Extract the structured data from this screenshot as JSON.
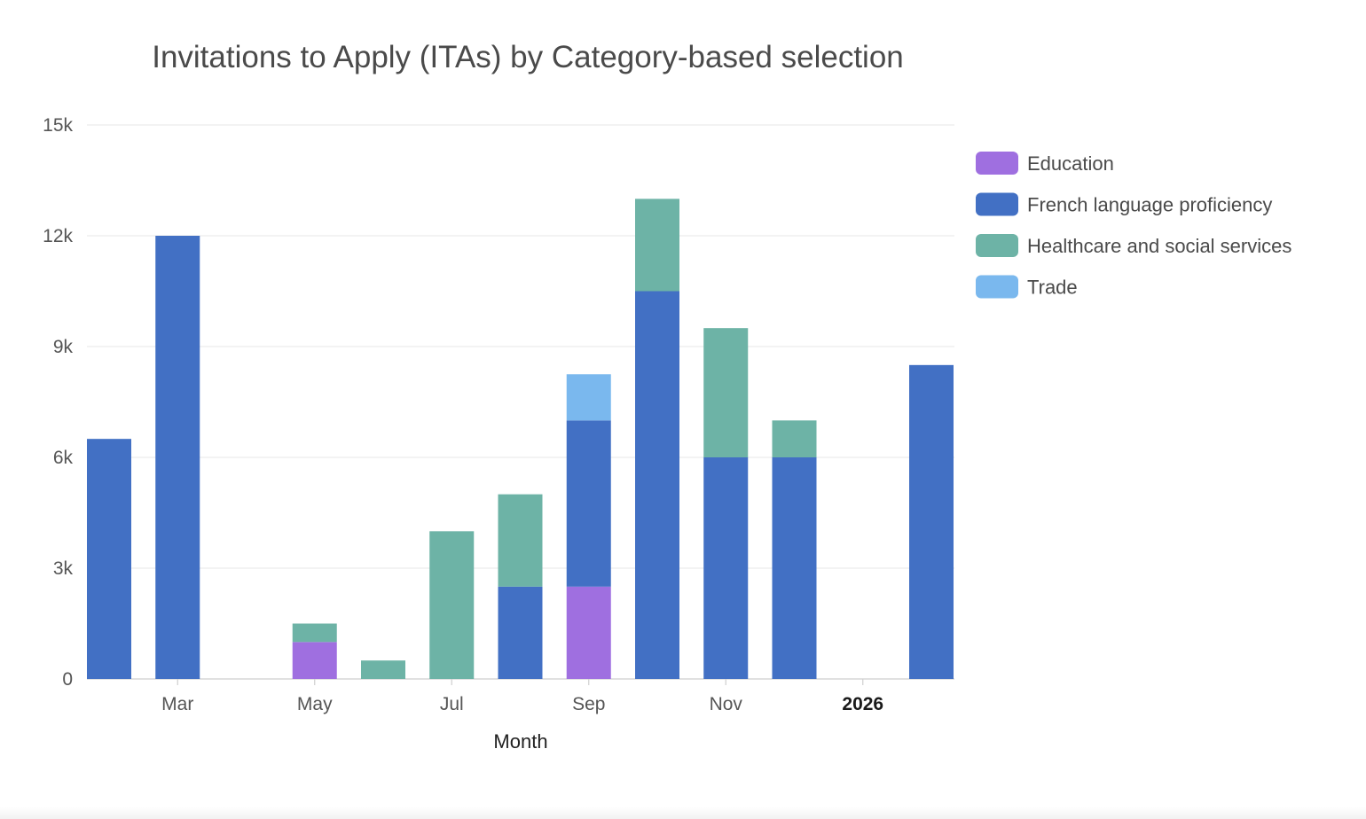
{
  "chart_data": {
    "type": "bar",
    "stacked": true,
    "title": "Invitations to Apply (ITAs) by Category-based selection",
    "xlabel": "Month",
    "ylabel": "",
    "ylim": [
      0,
      15000
    ],
    "yticks": [
      0,
      3000,
      6000,
      9000,
      12000,
      15000
    ],
    "ytick_labels": [
      "0",
      "3k",
      "6k",
      "9k",
      "12k",
      "15k"
    ],
    "grid": true,
    "legend_position": "right",
    "categories": [
      "2025-02",
      "2025-03",
      "2025-04",
      "2025-05",
      "2025-06",
      "2025-07",
      "2025-08",
      "2025-09",
      "2025-10",
      "2025-11",
      "2025-12",
      "2026-01",
      "2026-02"
    ],
    "x_tick_labels": [
      {
        "at": "2025-03",
        "label": "Mar",
        "bold": false
      },
      {
        "at": "2025-05",
        "label": "May",
        "bold": false
      },
      {
        "at": "2025-07",
        "label": "Jul",
        "bold": false
      },
      {
        "at": "2025-09",
        "label": "Sep",
        "bold": false
      },
      {
        "at": "2025-11",
        "label": "Nov",
        "bold": false
      },
      {
        "at": "2026-01",
        "label": "2026",
        "bold": true
      }
    ],
    "series": [
      {
        "name": "Education",
        "color": "#9f6fe0",
        "values": [
          0,
          0,
          0,
          1000,
          0,
          0,
          0,
          2500,
          0,
          0,
          0,
          0,
          0
        ]
      },
      {
        "name": "French language proficiency",
        "color": "#4270c4",
        "values": [
          6500,
          12000,
          0,
          0,
          0,
          0,
          2500,
          4500,
          10500,
          6000,
          6000,
          0,
          8500
        ]
      },
      {
        "name": "Healthcare and social services",
        "color": "#6db3a6",
        "values": [
          0,
          0,
          0,
          500,
          500,
          4000,
          2500,
          0,
          2500,
          3500,
          1000,
          0,
          0
        ]
      },
      {
        "name": "Trade",
        "color": "#7ab8ee",
        "values": [
          0,
          0,
          0,
          0,
          0,
          0,
          0,
          1250,
          0,
          0,
          0,
          0,
          0
        ]
      }
    ]
  }
}
